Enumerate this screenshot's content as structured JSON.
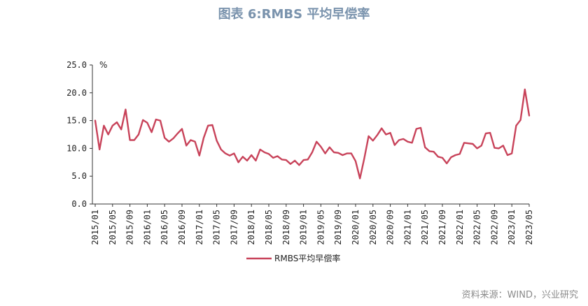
{
  "page": {
    "title": "图表 6:RMBS 平均早偿率",
    "source": "资料来源：WIND，兴业研究"
  },
  "chart_data": {
    "type": "line",
    "title": "图表 6:RMBS 平均早偿率",
    "ylabel": "%",
    "ylim": [
      0,
      25
    ],
    "yticks": [
      "0.0",
      "5.0",
      "10.0",
      "15.0",
      "20.0",
      "25.0"
    ],
    "yticks_values": [
      0,
      5,
      10,
      15,
      20,
      25
    ],
    "xtick_labels": [
      "2015/01",
      "2015/05",
      "2015/09",
      "2016/01",
      "2016/05",
      "2016/09",
      "2017/01",
      "2017/05",
      "2017/09",
      "2018/01",
      "2018/05",
      "2018/09",
      "2019/01",
      "2019/05",
      "2019/09",
      "2020/01",
      "2020/05",
      "2020/09",
      "2021/01",
      "2021/05",
      "2021/09",
      "2022/01",
      "2022/05",
      "2022/09",
      "2023/01",
      "2023/05"
    ],
    "grid": false,
    "legend_position": "bottom",
    "color": "#c8435a",
    "series": [
      {
        "name": "RMBS平均早偿率",
        "x": [
          "2015/01",
          "2015/02",
          "2015/03",
          "2015/04",
          "2015/05",
          "2015/06",
          "2015/07",
          "2015/08",
          "2015/09",
          "2015/10",
          "2015/11",
          "2015/12",
          "2016/01",
          "2016/02",
          "2016/03",
          "2016/04",
          "2016/05",
          "2016/06",
          "2016/07",
          "2016/08",
          "2016/09",
          "2016/10",
          "2016/11",
          "2016/12",
          "2017/01",
          "2017/02",
          "2017/03",
          "2017/04",
          "2017/05",
          "2017/06",
          "2017/07",
          "2017/08",
          "2017/09",
          "2017/10",
          "2017/11",
          "2017/12",
          "2018/01",
          "2018/02",
          "2018/03",
          "2018/04",
          "2018/05",
          "2018/06",
          "2018/07",
          "2018/08",
          "2018/09",
          "2018/10",
          "2018/11",
          "2018/12",
          "2019/01",
          "2019/02",
          "2019/03",
          "2019/04",
          "2019/05",
          "2019/06",
          "2019/07",
          "2019/08",
          "2019/09",
          "2019/10",
          "2019/11",
          "2019/12",
          "2020/01",
          "2020/02",
          "2020/03",
          "2020/04",
          "2020/05",
          "2020/06",
          "2020/07",
          "2020/08",
          "2020/09",
          "2020/10",
          "2020/11",
          "2020/12",
          "2021/01",
          "2021/02",
          "2021/03",
          "2021/04",
          "2021/05",
          "2021/06",
          "2021/07",
          "2021/08",
          "2021/09",
          "2021/10",
          "2021/11",
          "2021/12",
          "2022/01",
          "2022/02",
          "2022/03",
          "2022/04",
          "2022/05",
          "2022/06",
          "2022/07",
          "2022/08",
          "2022/09",
          "2022/10",
          "2022/11",
          "2022/12",
          "2023/01",
          "2023/02",
          "2023/03",
          "2023/04",
          "2023/05"
        ],
        "values": [
          15.0,
          9.8,
          14.1,
          12.5,
          14.1,
          14.7,
          13.4,
          17.0,
          11.5,
          11.5,
          12.5,
          15.1,
          14.6,
          12.9,
          15.2,
          15.0,
          11.9,
          11.2,
          11.8,
          12.7,
          13.5,
          10.5,
          11.5,
          11.2,
          8.7,
          11.9,
          14.1,
          14.2,
          11.4,
          9.8,
          9.1,
          8.7,
          9.1,
          7.5,
          8.5,
          7.8,
          8.8,
          7.8,
          9.8,
          9.3,
          9.0,
          8.3,
          8.6,
          8.0,
          7.9,
          7.2,
          7.8,
          7.0,
          7.9,
          8.0,
          9.3,
          11.2,
          10.3,
          9.1,
          10.2,
          9.3,
          9.2,
          8.8,
          9.1,
          9.1,
          7.7,
          4.6,
          8.2,
          12.2,
          11.4,
          12.4,
          13.6,
          12.5,
          12.8,
          10.6,
          11.5,
          11.7,
          11.2,
          11.0,
          13.5,
          13.7,
          10.2,
          9.5,
          9.4,
          8.5,
          8.3,
          7.3,
          8.4,
          8.8,
          9.0,
          11.0,
          10.9,
          10.8,
          10.0,
          10.5,
          12.7,
          12.8,
          10.1,
          10.0,
          10.5,
          8.8,
          9.1,
          14.1,
          15.1,
          20.6,
          15.9
        ]
      }
    ]
  }
}
